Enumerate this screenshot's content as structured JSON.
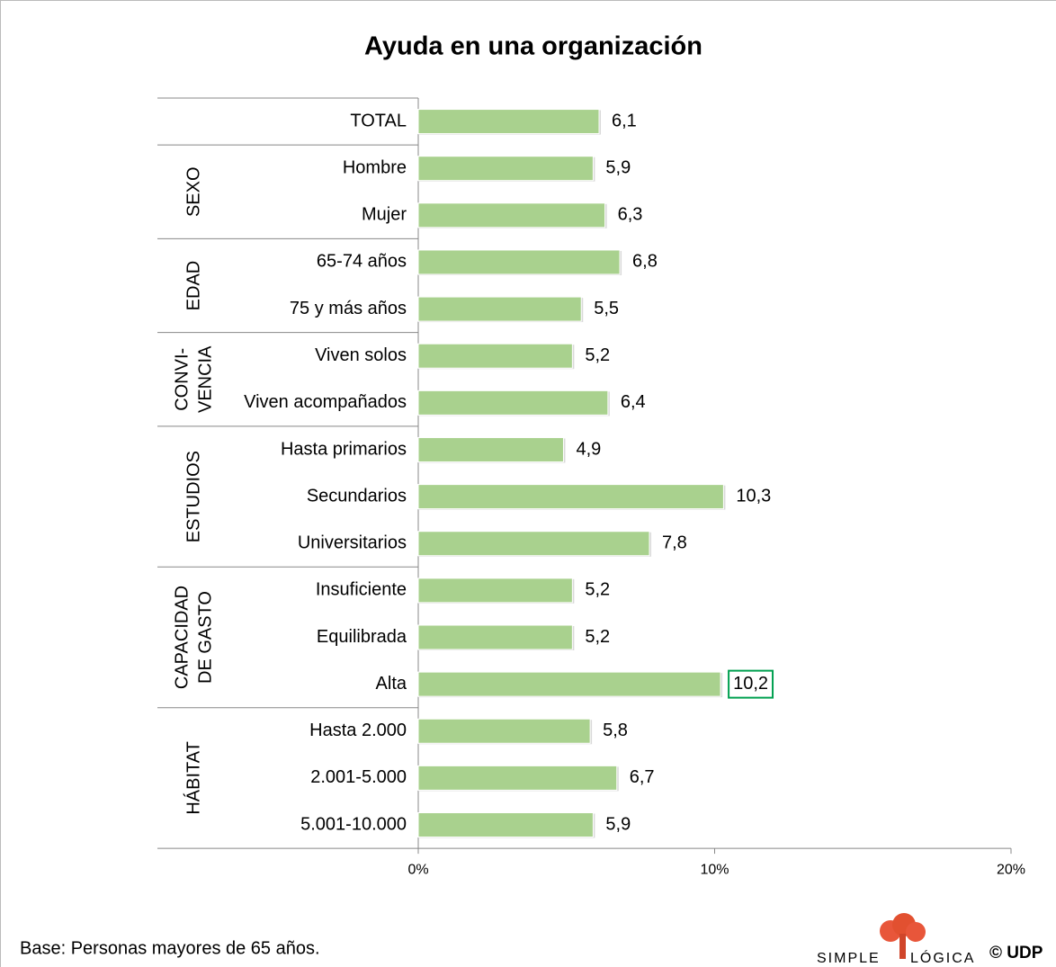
{
  "chart_data": {
    "type": "bar",
    "orientation": "horizontal",
    "title": "Ayuda en una organización",
    "color": "#a9d18e",
    "highlight_color": "#00a050",
    "highlighted_category": "Alta",
    "xlim": [
      0,
      20
    ],
    "xticks": [
      {
        "value": 0,
        "label": "0%"
      },
      {
        "value": 10,
        "label": "10%"
      },
      {
        "value": 20,
        "label": "20%"
      }
    ],
    "groups": [
      {
        "categories": [
          "TOTAL"
        ],
        "values": [
          6.1
        ],
        "value_labels": [
          "6,1"
        ]
      },
      {
        "name": [
          "SEXO"
        ],
        "categories": [
          "Hombre",
          "Mujer"
        ],
        "values": [
          5.9,
          6.3
        ],
        "value_labels": [
          "5,9",
          "6,3"
        ]
      },
      {
        "name": [
          "EDAD"
        ],
        "categories": [
          "65-74 años",
          "75 y más años"
        ],
        "values": [
          6.8,
          5.5
        ],
        "value_labels": [
          "6,8",
          "5,5"
        ]
      },
      {
        "name": [
          "CONVI-",
          "VENCIA"
        ],
        "categories": [
          "Viven solos",
          "Viven acompañados"
        ],
        "values": [
          5.2,
          6.4
        ],
        "value_labels": [
          "5,2",
          "6,4"
        ]
      },
      {
        "name": [
          "ESTUDIOS"
        ],
        "categories": [
          "Hasta primarios",
          "Secundarios",
          "Universitarios"
        ],
        "values": [
          4.9,
          10.3,
          7.8
        ],
        "value_labels": [
          "4,9",
          "10,3",
          "7,8"
        ]
      },
      {
        "name": [
          "CAPACIDAD",
          "DE GASTO"
        ],
        "categories": [
          "Insuficiente",
          "Equilibrada",
          "Alta"
        ],
        "values": [
          5.2,
          5.2,
          10.2
        ],
        "value_labels": [
          "5,2",
          "5,2",
          "10,2"
        ]
      },
      {
        "name": [
          "HÁBITAT"
        ],
        "categories": [
          "Hasta 2.000",
          "2.001-5.000",
          "5.001-10.000"
        ],
        "values": [
          5.8,
          6.7,
          5.9
        ],
        "value_labels": [
          "5,8",
          "6,7",
          "5,9"
        ]
      }
    ],
    "note": "Base: Personas mayores de 65 años.",
    "logo": [
      "SIMPLE",
      "LÓGICA"
    ],
    "copyright": "© UDP"
  }
}
